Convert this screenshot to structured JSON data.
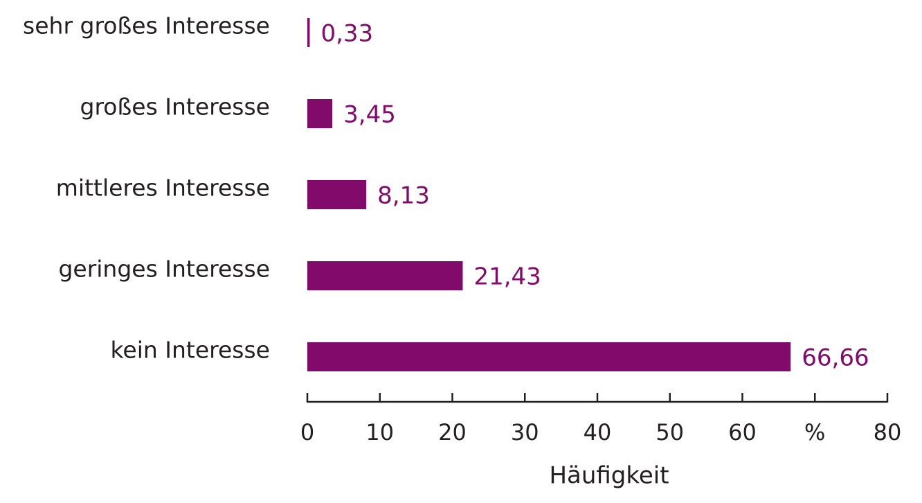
{
  "chart_data": {
    "type": "bar",
    "orientation": "horizontal",
    "categories": [
      "sehr großes Interesse",
      "großes Interesse",
      "mittleres Interesse",
      "geringes Interesse",
      "kein Interesse"
    ],
    "values": [
      0.33,
      3.45,
      8.13,
      21.43,
      66.66
    ],
    "value_labels": [
      "0,33",
      "3,45",
      "8,13",
      "21,43",
      "66,66"
    ],
    "color": "#820a6a",
    "xlabel": "Häufigkeit",
    "xlim": [
      0,
      80
    ],
    "xticks": [
      0,
      10,
      20,
      30,
      40,
      50,
      60,
      {
        "value": 70,
        "label": "%"
      },
      80
    ],
    "grid": false
  }
}
